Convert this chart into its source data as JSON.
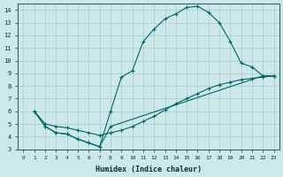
{
  "xlabel": "Humidex (Indice chaleur)",
  "ylabel": "",
  "bg_color": "#cce8e8",
  "grid_color": "#aacccc",
  "line_color": "#006666",
  "xlim": [
    -0.5,
    23.5
  ],
  "ylim": [
    3,
    14.5
  ],
  "line1_x": [
    1,
    2,
    3,
    4,
    5,
    6,
    7,
    8,
    9,
    10,
    11,
    12,
    13,
    14,
    15,
    16,
    17,
    18,
    19,
    20,
    21,
    22,
    23
  ],
  "line1_y": [
    6.0,
    4.8,
    4.3,
    4.2,
    3.8,
    3.5,
    3.2,
    6.0,
    8.7,
    9.2,
    11.5,
    12.5,
    13.3,
    13.7,
    14.2,
    14.3,
    13.8,
    13.0,
    11.5,
    9.8,
    9.5,
    8.8,
    8.8
  ],
  "line2_x": [
    1,
    2,
    3,
    4,
    5,
    6,
    7,
    8,
    22,
    23
  ],
  "line2_y": [
    6.0,
    4.8,
    4.3,
    4.2,
    3.8,
    3.5,
    3.2,
    4.8,
    8.8,
    8.8
  ],
  "line3_x": [
    1,
    2,
    3,
    4,
    5,
    6,
    7,
    8,
    9,
    10,
    11,
    12,
    13,
    14,
    15,
    16,
    17,
    18,
    19,
    20,
    21,
    22,
    23
  ],
  "line3_y": [
    6.0,
    5.0,
    4.8,
    4.7,
    4.5,
    4.3,
    4.1,
    4.3,
    4.5,
    4.8,
    5.2,
    5.6,
    6.1,
    6.6,
    7.0,
    7.4,
    7.8,
    8.1,
    8.3,
    8.5,
    8.6,
    8.7,
    8.8
  ]
}
